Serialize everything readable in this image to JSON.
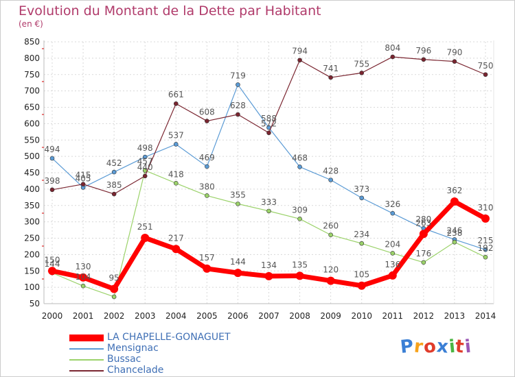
{
  "title": "Evolution du Montant de la Dette par Habitant",
  "subtitle": "(en €)",
  "brand": "Proxiti",
  "brand_colors": [
    "#3a7fd5",
    "#f7a21b",
    "#e03c2b",
    "#3a7fd5",
    "#4bb543",
    "#e03c2b",
    "#9b59b6"
  ],
  "chart_data": {
    "type": "line",
    "x": [
      2000,
      2001,
      2002,
      2003,
      2004,
      2005,
      2006,
      2007,
      2008,
      2009,
      2010,
      2011,
      2012,
      2013,
      2014
    ],
    "ylim": [
      50,
      850
    ],
    "yticks": [
      50,
      100,
      150,
      200,
      250,
      300,
      350,
      400,
      450,
      500,
      550,
      600,
      650,
      700,
      750,
      800,
      850
    ],
    "grid": true,
    "legend": "bottom-left",
    "series": [
      {
        "name": "Mensignac",
        "color": "#5b9bd5",
        "width": 1.2,
        "marker": 6,
        "values": [
          494,
          405,
          452,
          498,
          537,
          469,
          719,
          588,
          468,
          428,
          373,
          326,
          280,
          246,
          215
        ]
      },
      {
        "name": "Bussac",
        "color": "#9bd26a",
        "width": 1.2,
        "marker": 6,
        "values": [
          144,
          104,
          71,
          457,
          418,
          380,
          355,
          333,
          309,
          260,
          234,
          204,
          176,
          238,
          192
        ]
      },
      {
        "name": "Chancelade",
        "color": "#7a2530",
        "width": 1.2,
        "marker": 6,
        "values": [
          398,
          415,
          385,
          440,
          661,
          608,
          628,
          572,
          794,
          741,
          755,
          804,
          796,
          790,
          750
        ]
      },
      {
        "name": "LA CHAPELLE-GONAGUET",
        "color": "#ff0000",
        "width": 7,
        "marker": 12,
        "values": [
          150,
          130,
          95,
          251,
          217,
          157,
          144,
          134,
          135,
          120,
          105,
          136,
          263,
          362,
          310
        ]
      }
    ],
    "labels": [
      {
        "series": 0,
        "text": [
          "494",
          "405",
          "452",
          "498",
          "537",
          "469",
          "719",
          "588",
          "468",
          "428",
          "373",
          "326",
          "280",
          "246",
          "215"
        ]
      },
      {
        "series": 1,
        "text": [
          "144",
          "104",
          "",
          "457",
          "418",
          "380",
          "355",
          "333",
          "309",
          "260",
          "234",
          "204",
          "176",
          "238",
          "192"
        ]
      },
      {
        "series": 2,
        "text": [
          "398",
          "415",
          "385",
          "440",
          "661",
          "608",
          "628",
          "572",
          "794",
          "741",
          "755",
          "804",
          "796",
          "790",
          "750"
        ]
      },
      {
        "series": 3,
        "text": [
          "150",
          "130",
          "95",
          "251",
          "217",
          "157",
          "144",
          "134",
          "135",
          "120",
          "105",
          "136",
          "263",
          "362",
          "310"
        ]
      }
    ]
  }
}
